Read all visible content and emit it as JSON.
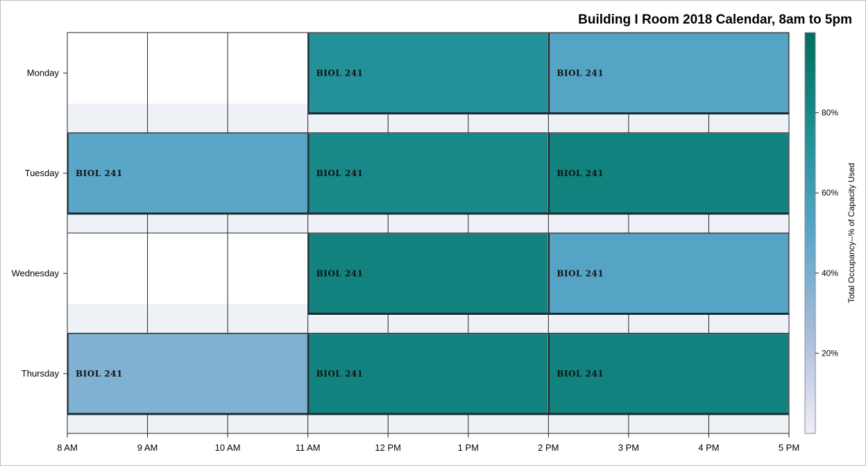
{
  "chart_data": {
    "type": "heatmap",
    "title": "Building I Room 2018 Calendar, 8am to 5pm",
    "x_ticks": [
      "8 AM",
      "9 AM",
      "10 AM",
      "11 AM",
      "12 PM",
      "1 PM",
      "2 PM",
      "3 PM",
      "4 PM",
      "5 PM"
    ],
    "x_range": [
      8,
      17
    ],
    "days": [
      "Monday",
      "Tuesday",
      "Wednesday",
      "Thursday"
    ],
    "blocks": [
      {
        "day": "Monday",
        "start": 11,
        "end": 14,
        "label": "BIOL 241",
        "occupancy": 73
      },
      {
        "day": "Monday",
        "start": 14,
        "end": 17,
        "label": "BIOL 241",
        "occupancy": 52
      },
      {
        "day": "Tuesday",
        "start": 8,
        "end": 11,
        "label": "BIOL 241",
        "occupancy": 50
      },
      {
        "day": "Tuesday",
        "start": 11,
        "end": 14,
        "label": "BIOL 241",
        "occupancy": 80
      },
      {
        "day": "Tuesday",
        "start": 14,
        "end": 17,
        "label": "BIOL 241",
        "occupancy": 85
      },
      {
        "day": "Wednesday",
        "start": 11,
        "end": 14,
        "label": "BIOL 241",
        "occupancy": 85
      },
      {
        "day": "Wednesday",
        "start": 14,
        "end": 17,
        "label": "BIOL 241",
        "occupancy": 52
      },
      {
        "day": "Thursday",
        "start": 8,
        "end": 11,
        "label": "BIOL 241",
        "occupancy": 38
      },
      {
        "day": "Thursday",
        "start": 11,
        "end": 14,
        "label": "BIOL 241",
        "occupancy": 85
      },
      {
        "day": "Thursday",
        "start": 14,
        "end": 17,
        "label": "BIOL 241",
        "occupancy": 85
      }
    ],
    "colorbar": {
      "title": "Total Occupancy--% of Capacity Used",
      "range": [
        0,
        100
      ],
      "ticks": [
        20,
        40,
        60,
        80
      ],
      "tick_labels": [
        "20%",
        "40%",
        "60%",
        "80%"
      ],
      "colors": [
        "#f2eef8",
        "#a9bcdc",
        "#5aa6c9",
        "#1e8f94",
        "#006e5c"
      ]
    },
    "grid": true
  }
}
